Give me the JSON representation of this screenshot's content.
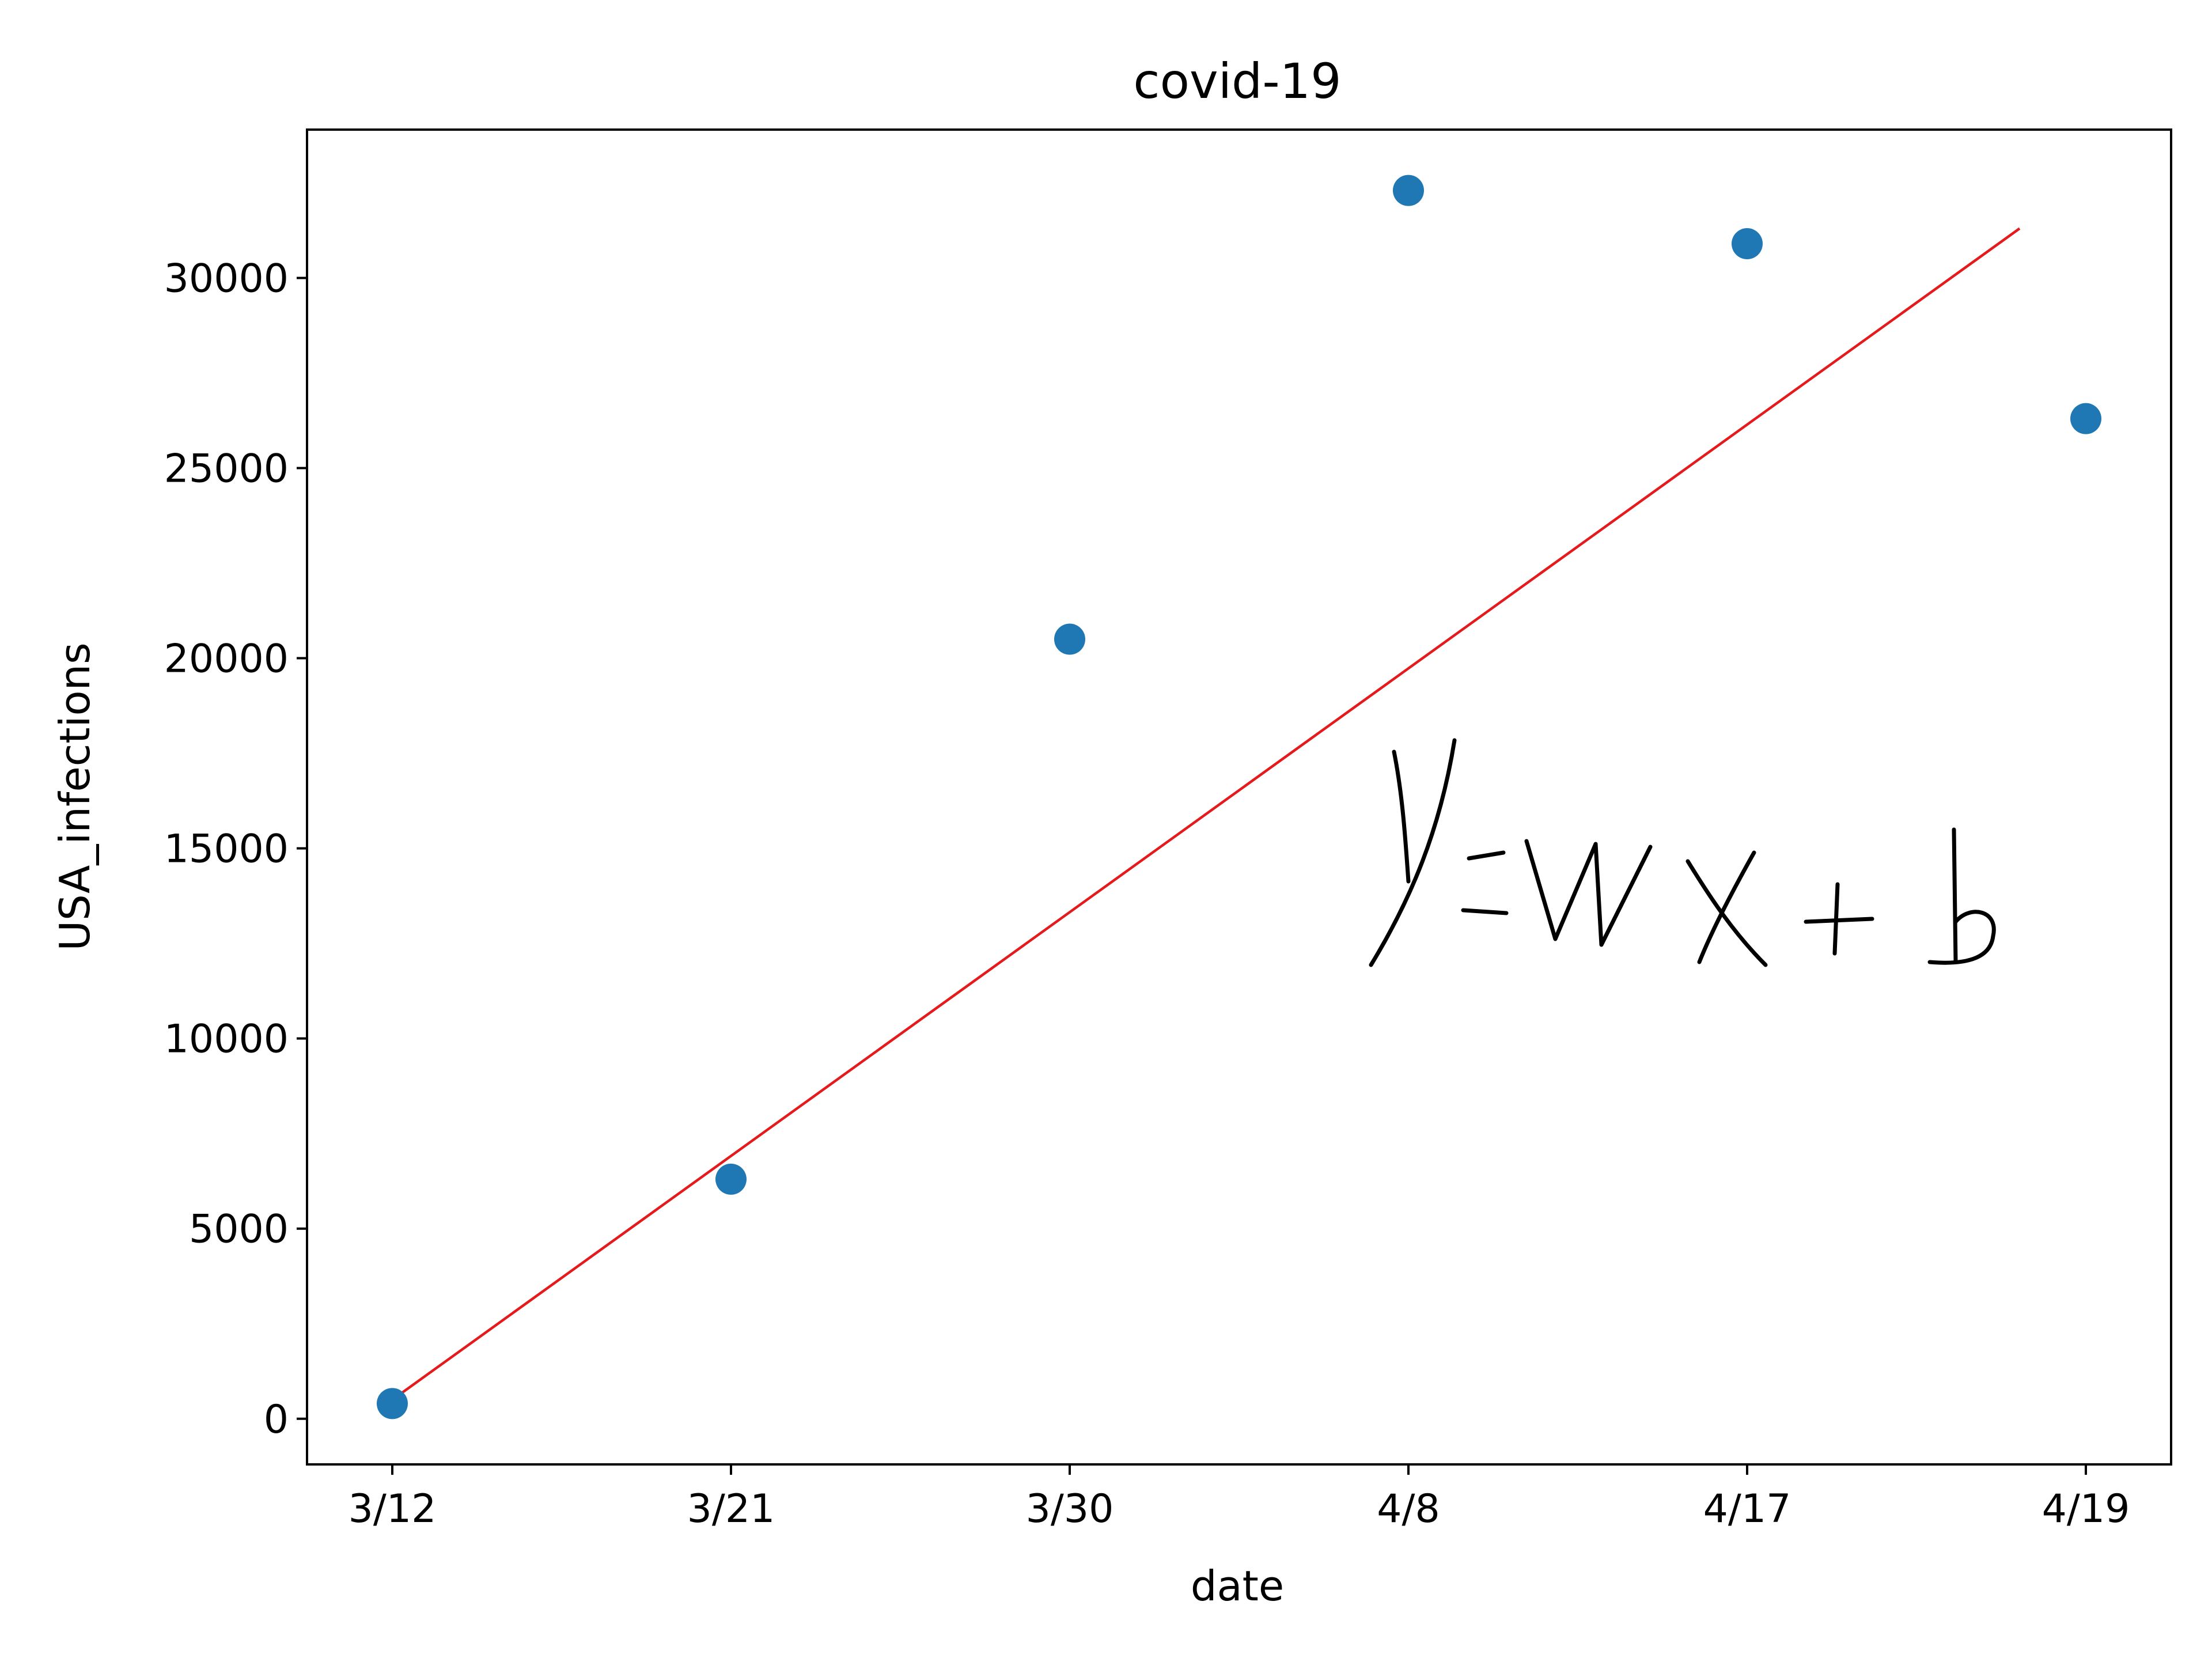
{
  "colors": {
    "background": "#ffffff",
    "axes": "#000000",
    "scatter": "#1f77b4",
    "fit_line": "#e41a1c",
    "handwriting": "#000000"
  },
  "chart_data": {
    "type": "scatter",
    "title": "covid-19",
    "xlabel": "date",
    "ylabel": "USA_infections",
    "categories": [
      "3/12",
      "3/21",
      "3/30",
      "4/8",
      "4/17",
      "4/19"
    ],
    "series": [
      {
        "type": "scatter",
        "values": [
          400,
          6300,
          20500,
          32300,
          30900,
          26300
        ]
      },
      {
        "type": "line",
        "from": {
          "x": "3/12",
          "y": 500
        },
        "to": {
          "x": "4/19",
          "y": 31300
        }
      }
    ],
    "yticks": [
      0,
      5000,
      10000,
      15000,
      20000,
      25000,
      30000
    ],
    "ylim": [
      -1200,
      33900
    ],
    "grid": false,
    "legend": "none",
    "annotations": [
      {
        "text": "y=wx+b",
        "style": "handwritten",
        "icon": "handwritten-equation-icon"
      }
    ]
  }
}
